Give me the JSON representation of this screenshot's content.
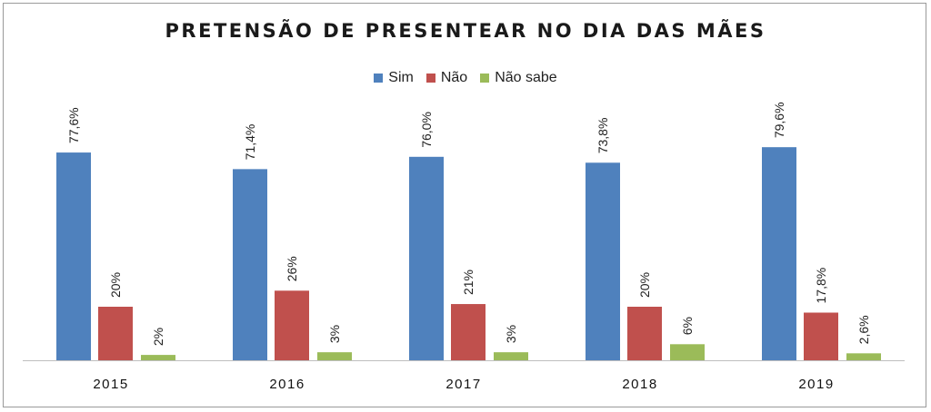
{
  "chart_data": {
    "type": "bar",
    "title": "PRETENSÃO DE PRESENTEAR NO DIA DAS MÃES",
    "categories": [
      "2015",
      "2016",
      "2017",
      "2018",
      "2019"
    ],
    "series": [
      {
        "name": "Sim",
        "color": "#4f81bd",
        "values": [
          77.6,
          71.4,
          76.0,
          73.8,
          79.6
        ],
        "labels": [
          "77,6%",
          "71,4%",
          "76,0%",
          "73,8%",
          "79,6%"
        ]
      },
      {
        "name": "Não",
        "color": "#c0504d",
        "values": [
          20,
          26,
          21,
          20,
          17.8
        ],
        "labels": [
          "20%",
          "26%",
          "21%",
          "20%",
          "17,8%"
        ]
      },
      {
        "name": "Não sabe",
        "color": "#9bbb59",
        "values": [
          2,
          3,
          3,
          6,
          2.6
        ],
        "labels": [
          "2%",
          "3%",
          "3%",
          "6%",
          "2,6%"
        ]
      }
    ],
    "legend_position": "top",
    "grid": false,
    "ylim": [
      0,
      100
    ]
  }
}
